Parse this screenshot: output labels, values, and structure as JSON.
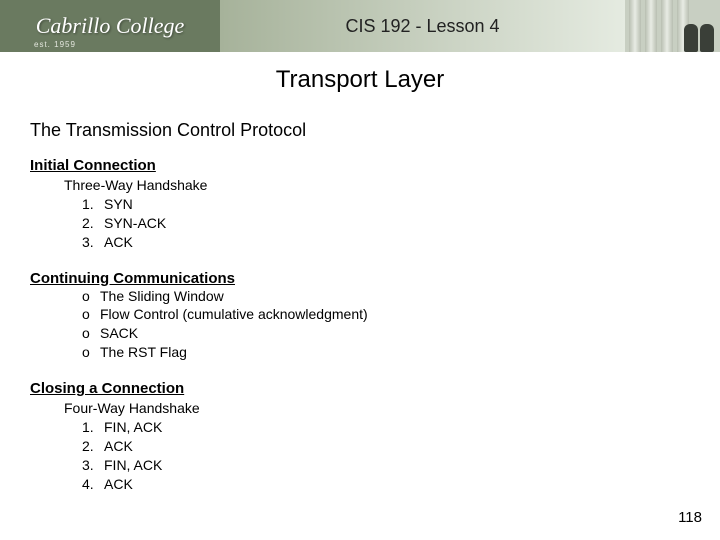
{
  "banner": {
    "logo_text": "Cabrillo College",
    "est_text": "est. 1959",
    "course_title": "CIS 192 - Lesson 4"
  },
  "main_title": "Transport Layer",
  "section_heading": "The Transmission Control Protocol",
  "sections": [
    {
      "heading": "Initial Connection",
      "subheading": "Three-Way Handshake",
      "list_type": "ordered",
      "items": [
        "SYN",
        "SYN-ACK",
        "ACK"
      ]
    },
    {
      "heading": "Continuing Communications",
      "subheading": null,
      "list_type": "unordered",
      "items": [
        "The Sliding Window",
        "Flow Control (cumulative acknowledgment)",
        "SACK",
        "The RST Flag"
      ]
    },
    {
      "heading": "Closing a Connection",
      "subheading": "Four-Way Handshake",
      "list_type": "ordered",
      "items": [
        "FIN, ACK",
        "ACK",
        "FIN, ACK",
        "ACK"
      ]
    }
  ],
  "page_number": "118",
  "bullet_glyph": "o"
}
